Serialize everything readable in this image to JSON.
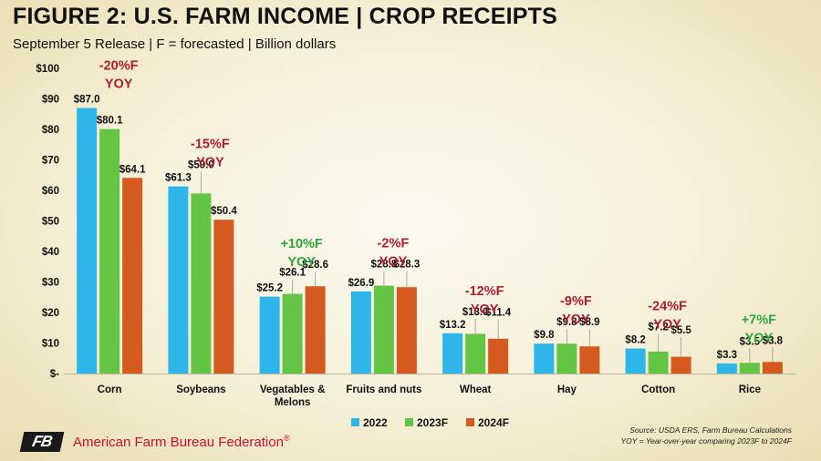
{
  "header": {
    "title": "FIGURE 2: U.S. FARM INCOME | CROP RECEIPTS",
    "subtitle": "September 5 Release | F = forecasted | Billion dollars"
  },
  "footer": {
    "source_line1": "Source: USDA ERS, Farm Bureau Calculations",
    "source_line2": "YOY = Year-over-year comparing 2023F to 2024F",
    "organization": "American Farm Bureau Federation",
    "registered_mark": "®",
    "logo_text": "FB"
  },
  "chart_data": {
    "type": "bar",
    "title": "FIGURE 2: U.S. FARM INCOME | CROP RECEIPTS",
    "subtitle": "September 5 Release | F = forecasted | Billion dollars",
    "categories": [
      "Corn",
      "Soybeans",
      "Vegatables & Melons",
      "Fruits and nuts",
      "Wheat",
      "Hay",
      "Cotton",
      "Rice"
    ],
    "series": [
      {
        "name": "2022",
        "color": "#2eb5ea",
        "values": [
          87.0,
          61.3,
          25.2,
          26.9,
          13.2,
          9.8,
          8.2,
          3.3
        ],
        "labels": [
          "$87.0",
          "$61.3",
          "$25.2",
          "$26.9",
          "$13.2",
          "$9.8",
          "$8.2",
          "$3.3"
        ]
      },
      {
        "name": "2023F",
        "color": "#64c444",
        "values": [
          80.1,
          59.0,
          26.1,
          28.8,
          13.0,
          9.8,
          7.2,
          3.5
        ],
        "labels": [
          "$80.1",
          "$59.0",
          "$26.1",
          "$28.8",
          "$13.0",
          "$9.8",
          "$7.2",
          "$3.5"
        ]
      },
      {
        "name": "2024F",
        "color": "#d45a1f",
        "values": [
          64.1,
          50.4,
          28.6,
          28.3,
          11.4,
          8.9,
          5.5,
          3.8
        ],
        "labels": [
          "$64.1",
          "$50.4",
          "$28.6",
          "$28.3",
          "$11.4",
          "$8.9",
          "$5.5",
          "$3.8"
        ]
      }
    ],
    "yoy": [
      {
        "pct": "-20%F",
        "label": "YOY",
        "color": "#b01c2e"
      },
      {
        "pct": "-15%F",
        "label": "YOY",
        "color": "#b01c2e"
      },
      {
        "pct": "+10%F",
        "label": "YOY",
        "color": "#2ea63b"
      },
      {
        "pct": "-2%F",
        "label": "YOY",
        "color": "#b01c2e"
      },
      {
        "pct": "-12%F",
        "label": "YOY",
        "color": "#b01c2e"
      },
      {
        "pct": "-9%F",
        "label": "YOY",
        "color": "#b01c2e"
      },
      {
        "pct": "-24%F",
        "label": "YOY",
        "color": "#b01c2e"
      },
      {
        "pct": "+7%F",
        "label": "YOY",
        "color": "#2ea63b"
      }
    ],
    "ylim": [
      0,
      100
    ],
    "yticks": [
      0,
      10,
      20,
      30,
      40,
      50,
      60,
      70,
      80,
      90,
      100
    ],
    "ytick_labels": [
      "$-",
      "$10",
      "$20",
      "$30",
      "$40",
      "$50",
      "$60",
      "$70",
      "$80",
      "$90",
      "$100"
    ],
    "legend_position": "bottom-center",
    "grid": false
  }
}
